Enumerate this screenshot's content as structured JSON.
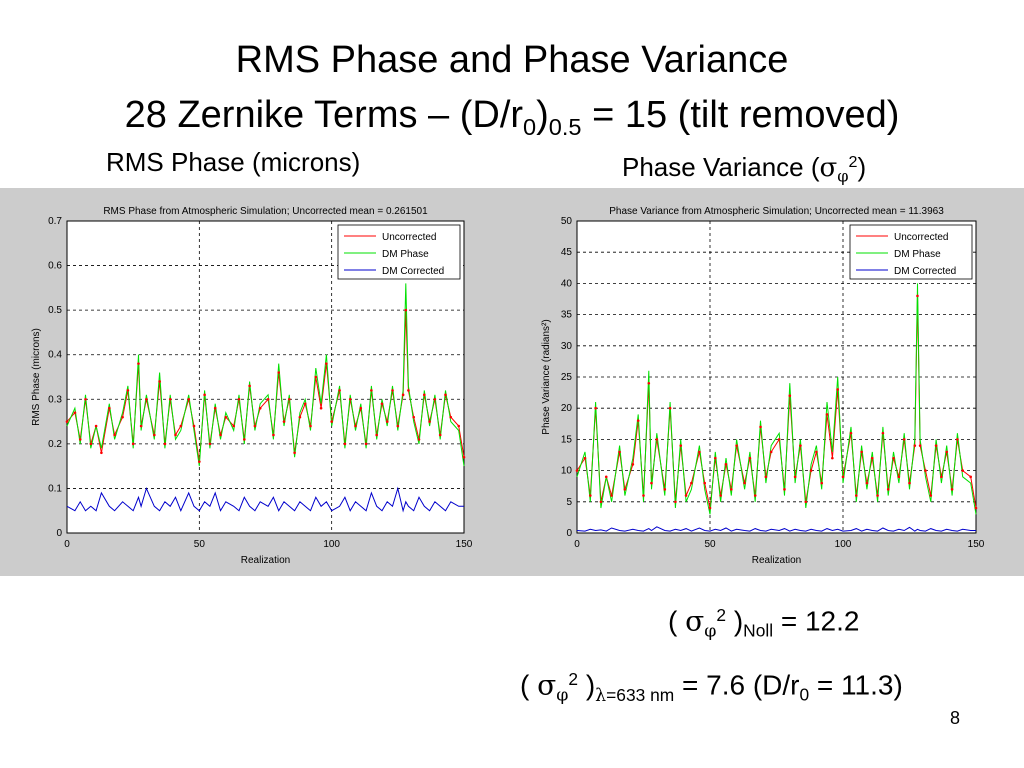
{
  "title_line1": "RMS Phase and Phase Variance",
  "title_line2_pre": "28 Zernike Terms – (D/r",
  "title_line2_sub0": "0",
  "title_line2_mid": ")",
  "title_line2_sub05": "0.5",
  "title_line2_post": " = 15 (tilt removed)",
  "sub_left": "RMS Phase (microns)",
  "sub_right_pre": "Phase Variance (",
  "sigma": "σ",
  "phi": "φ",
  "sub_right_sup": "2",
  "sub_right_post": ")",
  "eq1": {
    "open": "( ",
    "sup": "2",
    "close": " )",
    "sub": "Noll",
    "rest": " = 12.2"
  },
  "eq2": {
    "open": "( ",
    "sup": "2",
    "close": " )",
    "lambda": "λ",
    "sub_rest": "=633 nm",
    "rest": " = 7.6 (D/r",
    "sub0": "0",
    "rest2": " = 11.3)"
  },
  "page_number": "8",
  "colors": {
    "uncorrected": "#ff0000",
    "dm_phase": "#00e000",
    "dm_corrected": "#0000cc",
    "panel_bg": "#cccccc"
  },
  "chart_data": [
    {
      "type": "line",
      "title": "RMS Phase from Atmospheric Simulation; Uncorrected mean = 0.261501",
      "xlabel": "Realization",
      "ylabel": "RMS Phase (microns)",
      "xlim": [
        0,
        150
      ],
      "ylim": [
        0,
        0.7
      ],
      "xticks": [
        0,
        50,
        100,
        150
      ],
      "yticks": [
        0,
        0.1,
        0.2,
        0.3,
        0.4,
        0.5,
        0.6,
        0.7
      ],
      "grid": true,
      "legend_position": "top-right",
      "legend": [
        "Uncorrected",
        "DM Phase",
        "DM Corrected"
      ],
      "x": [
        0,
        3,
        5,
        7,
        9,
        11,
        13,
        16,
        18,
        21,
        23,
        25,
        27,
        28,
        30,
        33,
        35,
        37,
        39,
        41,
        43,
        46,
        48,
        50,
        52,
        54,
        56,
        58,
        60,
        63,
        65,
        67,
        69,
        71,
        73,
        76,
        78,
        80,
        82,
        84,
        86,
        88,
        90,
        92,
        94,
        96,
        98,
        100,
        103,
        105,
        107,
        109,
        111,
        113,
        115,
        117,
        119,
        121,
        123,
        125,
        127,
        128,
        129,
        131,
        133,
        135,
        137,
        139,
        141,
        143,
        145,
        148,
        150
      ],
      "series": [
        {
          "name": "Uncorrected",
          "values": [
            0.25,
            0.27,
            0.21,
            0.3,
            0.2,
            0.24,
            0.18,
            0.28,
            0.22,
            0.26,
            0.32,
            0.2,
            0.38,
            0.24,
            0.3,
            0.22,
            0.34,
            0.2,
            0.3,
            0.22,
            0.24,
            0.3,
            0.24,
            0.16,
            0.31,
            0.2,
            0.28,
            0.22,
            0.26,
            0.24,
            0.3,
            0.21,
            0.33,
            0.24,
            0.28,
            0.3,
            0.22,
            0.36,
            0.25,
            0.3,
            0.18,
            0.26,
            0.29,
            0.24,
            0.35,
            0.28,
            0.38,
            0.25,
            0.32,
            0.2,
            0.3,
            0.24,
            0.28,
            0.2,
            0.32,
            0.22,
            0.29,
            0.25,
            0.32,
            0.24,
            0.31,
            0.5,
            0.32,
            0.26,
            0.21,
            0.31,
            0.25,
            0.3,
            0.22,
            0.31,
            0.26,
            0.24,
            0.17
          ]
        },
        {
          "name": "DM Phase",
          "values": [
            0.24,
            0.28,
            0.2,
            0.31,
            0.19,
            0.24,
            0.19,
            0.29,
            0.21,
            0.27,
            0.33,
            0.19,
            0.4,
            0.23,
            0.31,
            0.21,
            0.36,
            0.19,
            0.31,
            0.21,
            0.23,
            0.31,
            0.23,
            0.15,
            0.32,
            0.19,
            0.29,
            0.21,
            0.27,
            0.23,
            0.31,
            0.2,
            0.34,
            0.23,
            0.29,
            0.31,
            0.21,
            0.38,
            0.24,
            0.31,
            0.17,
            0.27,
            0.3,
            0.23,
            0.37,
            0.29,
            0.4,
            0.24,
            0.33,
            0.19,
            0.31,
            0.23,
            0.29,
            0.19,
            0.33,
            0.21,
            0.3,
            0.24,
            0.33,
            0.23,
            0.32,
            0.56,
            0.33,
            0.25,
            0.2,
            0.32,
            0.24,
            0.31,
            0.21,
            0.32,
            0.25,
            0.23,
            0.15
          ]
        },
        {
          "name": "DM Corrected",
          "values": [
            0.06,
            0.05,
            0.07,
            0.05,
            0.06,
            0.05,
            0.09,
            0.06,
            0.05,
            0.07,
            0.06,
            0.05,
            0.08,
            0.06,
            0.1,
            0.06,
            0.05,
            0.07,
            0.06,
            0.08,
            0.05,
            0.09,
            0.06,
            0.05,
            0.07,
            0.06,
            0.09,
            0.05,
            0.07,
            0.06,
            0.05,
            0.08,
            0.06,
            0.05,
            0.07,
            0.06,
            0.08,
            0.05,
            0.07,
            0.06,
            0.05,
            0.07,
            0.06,
            0.05,
            0.08,
            0.06,
            0.07,
            0.05,
            0.06,
            0.08,
            0.05,
            0.07,
            0.06,
            0.05,
            0.09,
            0.06,
            0.05,
            0.07,
            0.06,
            0.1,
            0.05,
            0.07,
            0.06,
            0.05,
            0.08,
            0.06,
            0.05,
            0.07,
            0.06,
            0.05,
            0.07,
            0.06,
            0.06
          ]
        }
      ]
    },
    {
      "type": "line",
      "title": "Phase Variance from Atmospheric Simulation; Uncorrected mean = 11.3963",
      "xlabel": "Realization",
      "ylabel": "Phase Variance (radians²)",
      "xlim": [
        0,
        150
      ],
      "ylim": [
        0,
        50
      ],
      "xticks": [
        0,
        50,
        100,
        150
      ],
      "yticks": [
        0,
        5,
        10,
        15,
        20,
        25,
        30,
        35,
        40,
        45,
        50
      ],
      "grid": true,
      "legend_position": "top-right",
      "legend": [
        "Uncorrected",
        "DM Phase",
        "DM Corrected"
      ],
      "x": [
        0,
        3,
        5,
        7,
        9,
        11,
        13,
        16,
        18,
        21,
        23,
        25,
        27,
        28,
        30,
        33,
        35,
        37,
        39,
        41,
        43,
        46,
        48,
        50,
        52,
        54,
        56,
        58,
        60,
        63,
        65,
        67,
        69,
        71,
        73,
        76,
        78,
        80,
        82,
        84,
        86,
        88,
        90,
        92,
        94,
        96,
        98,
        100,
        103,
        105,
        107,
        109,
        111,
        113,
        115,
        117,
        119,
        121,
        123,
        125,
        127,
        128,
        129,
        131,
        133,
        135,
        137,
        139,
        141,
        143,
        145,
        148,
        150
      ],
      "series": [
        {
          "name": "Uncorrected",
          "values": [
            10,
            12,
            6,
            20,
            5,
            9,
            6,
            13,
            7,
            11,
            18,
            6,
            24,
            8,
            15,
            7,
            20,
            5,
            14,
            6,
            8,
            13,
            8,
            4,
            12,
            6,
            11,
            7,
            14,
            8,
            12,
            6,
            17,
            9,
            13,
            15,
            7,
            22,
            9,
            14,
            5,
            10,
            13,
            8,
            19,
            12,
            23,
            9,
            16,
            6,
            13,
            8,
            12,
            6,
            16,
            7,
            12,
            9,
            15,
            8,
            14,
            38,
            14,
            10,
            6,
            14,
            9,
            13,
            7,
            15,
            10,
            9,
            4
          ]
        },
        {
          "name": "DM Phase",
          "values": [
            9,
            13,
            5,
            21,
            4,
            9,
            5,
            14,
            6,
            12,
            19,
            5,
            26,
            7,
            16,
            6,
            21,
            4,
            15,
            5,
            7,
            14,
            7,
            3,
            13,
            5,
            12,
            6,
            15,
            7,
            13,
            5,
            18,
            8,
            14,
            16,
            6,
            24,
            8,
            15,
            4,
            11,
            14,
            7,
            21,
            13,
            25,
            8,
            17,
            5,
            14,
            7,
            13,
            5,
            17,
            6,
            13,
            8,
            16,
            7,
            15,
            40,
            15,
            9,
            5,
            15,
            8,
            14,
            6,
            16,
            9,
            8,
            3
          ]
        },
        {
          "name": "DM Corrected",
          "values": [
            0.4,
            0.3,
            0.6,
            0.4,
            0.5,
            0.3,
            0.8,
            0.4,
            0.3,
            0.6,
            0.4,
            0.3,
            0.7,
            0.4,
            1.0,
            0.4,
            0.3,
            0.6,
            0.4,
            0.7,
            0.3,
            0.8,
            0.4,
            0.3,
            0.6,
            0.4,
            0.8,
            0.3,
            0.6,
            0.4,
            0.3,
            0.7,
            0.4,
            0.3,
            0.6,
            0.4,
            0.7,
            0.3,
            0.6,
            0.4,
            0.3,
            0.6,
            0.4,
            0.3,
            0.7,
            0.4,
            0.6,
            0.3,
            0.4,
            0.7,
            0.3,
            0.6,
            0.4,
            0.3,
            0.8,
            0.4,
            0.3,
            0.6,
            0.4,
            0.9,
            0.3,
            0.6,
            0.4,
            0.3,
            0.7,
            0.4,
            0.3,
            0.6,
            0.4,
            0.3,
            0.6,
            0.4,
            0.4
          ]
        }
      ]
    }
  ]
}
